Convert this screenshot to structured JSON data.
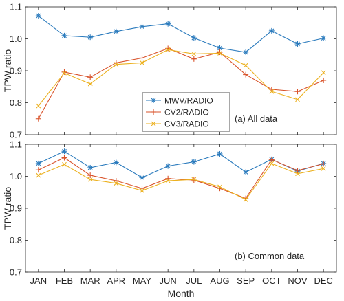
{
  "chart_data": {
    "type": "line",
    "categories": [
      "JAN",
      "FEB",
      "MAR",
      "APR",
      "MAY",
      "JUN",
      "JUL",
      "AUG",
      "SEP",
      "OCT",
      "NOV",
      "DEC"
    ],
    "xlabel": "Month",
    "colors": {
      "MWV/RADIO": "#2b7bbd",
      "CV2/RADIO": "#d9532b",
      "CV3/RADIO": "#ecb120"
    },
    "panels": [
      {
        "annotation": "(a) All data",
        "ylabel": "TPW ratio",
        "ylim": [
          0.7,
          1.1
        ],
        "yticks": [
          "0.7",
          "0.8",
          "0.9",
          "1.0",
          "1.1"
        ],
        "legend_position": "lower-center",
        "series": [
          {
            "name": "MWV/RADIO",
            "marker": "asterisk",
            "values": [
              1.072,
              1.01,
              1.005,
              1.023,
              1.038,
              1.047,
              1.003,
              0.971,
              0.958,
              1.025,
              0.984,
              1.002
            ]
          },
          {
            "name": "CV2/RADIO",
            "marker": "plus",
            "values": [
              0.75,
              0.896,
              0.88,
              0.925,
              0.94,
              0.97,
              0.937,
              0.958,
              0.888,
              0.842,
              0.835,
              0.87
            ]
          },
          {
            "name": "CV3/RADIO",
            "marker": "x",
            "values": [
              0.79,
              0.893,
              0.859,
              0.92,
              0.925,
              0.966,
              0.953,
              0.955,
              0.917,
              0.835,
              0.81,
              0.894
            ]
          }
        ]
      },
      {
        "annotation": "(b) Common data",
        "ylabel": "TPW ratio",
        "ylim": [
          0.7,
          1.1
        ],
        "yticks": [
          "0.7",
          "0.8",
          "0.9",
          "1.0",
          "1.1"
        ],
        "series": [
          {
            "name": "MWV/RADIO",
            "marker": "asterisk",
            "values": [
              1.04,
              1.078,
              1.027,
              1.043,
              0.996,
              1.032,
              1.045,
              1.07,
              1.013,
              1.053,
              1.016,
              1.04
            ]
          },
          {
            "name": "CV2/RADIO",
            "marker": "plus",
            "values": [
              1.02,
              1.058,
              1.003,
              0.986,
              0.962,
              0.993,
              0.988,
              0.962,
              0.931,
              1.052,
              1.018,
              1.039
            ]
          },
          {
            "name": "CV3/RADIO",
            "marker": "x",
            "values": [
              1.003,
              1.037,
              0.99,
              0.978,
              0.955,
              0.986,
              0.99,
              0.967,
              0.927,
              1.04,
              1.008,
              1.024
            ]
          }
        ]
      }
    ]
  }
}
